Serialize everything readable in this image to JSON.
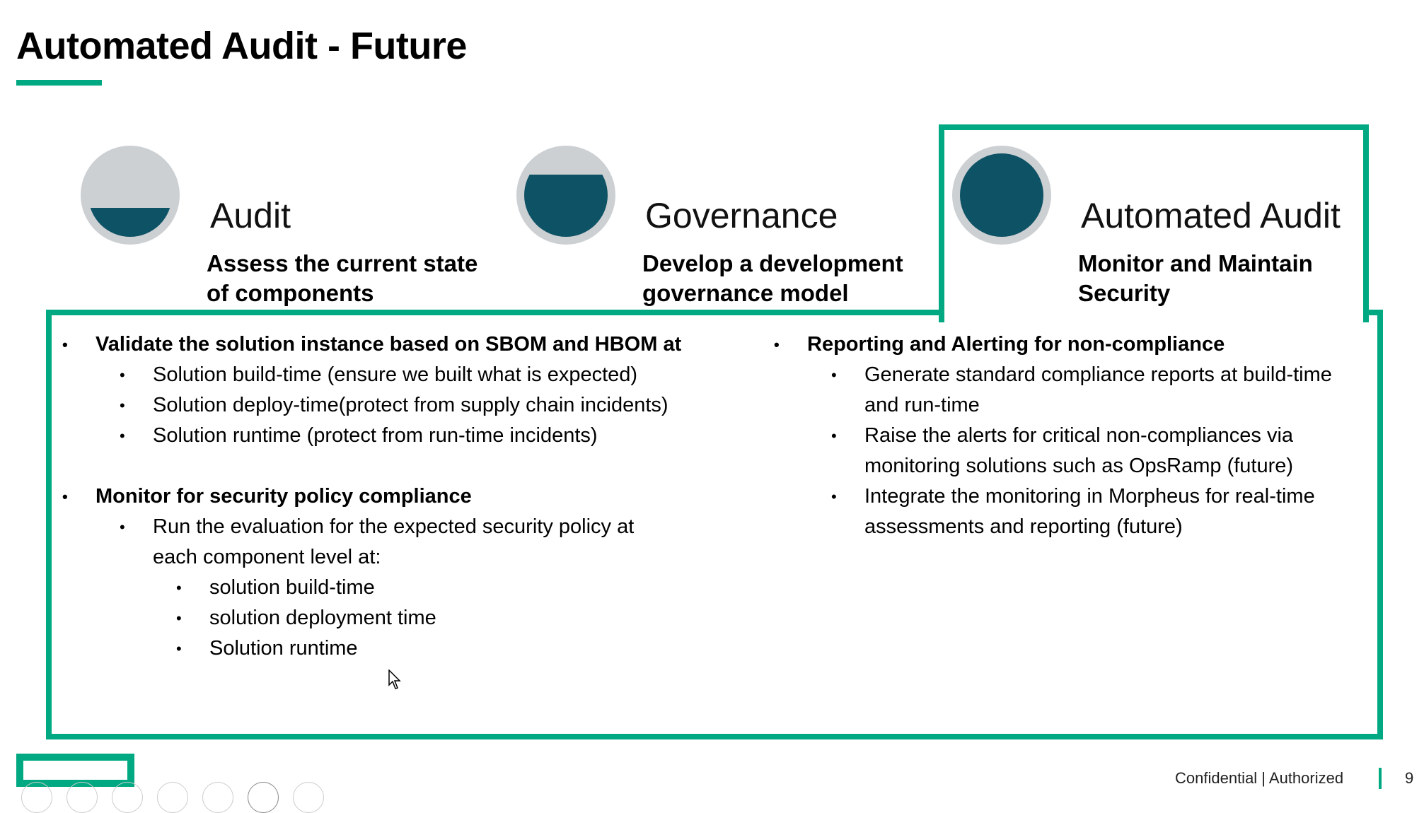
{
  "title": "Automated Audit - Future",
  "accent_color": "#01a982",
  "phases": [
    {
      "title": "Audit",
      "subtitle_lines": [
        "Assess the current state",
        "of components"
      ],
      "fill_level": 0.35
    },
    {
      "title": "Governance",
      "subtitle_lines": [
        "Develop a development",
        "governance model"
      ],
      "fill_level": 0.75
    },
    {
      "title": "Automated Audit",
      "subtitle_lines": [
        "Monitor and Maintain",
        "Security"
      ],
      "fill_level": 1.0
    }
  ],
  "left": {
    "b1": {
      "head": "Validate the solution instance based on SBOM and HBOM at",
      "items": [
        "Solution build-time (ensure we built what is expected)",
        "Solution deploy-time(protect from supply chain incidents)",
        "Solution runtime (protect from run-time incidents)"
      ]
    },
    "b2": {
      "head": "Monitor for security policy compliance",
      "item_lines": [
        "Run the evaluation for the expected security policy at",
        "each component level at:"
      ],
      "sub": [
        "solution build-time",
        "solution deployment time",
        "Solution runtime"
      ]
    }
  },
  "right": {
    "head": "Reporting and Alerting for non-compliance",
    "items": [
      [
        "Generate standard compliance reports at build-time",
        "and run-time"
      ],
      [
        "Raise the alerts for critical non-compliances via",
        "monitoring solutions such as OpsRamp (future)"
      ],
      [
        "Integrate the monitoring in Morpheus for real-time",
        "assessments and reporting (future)"
      ]
    ]
  },
  "footer": {
    "classification": "Confidential | Authorized",
    "page": "9"
  }
}
